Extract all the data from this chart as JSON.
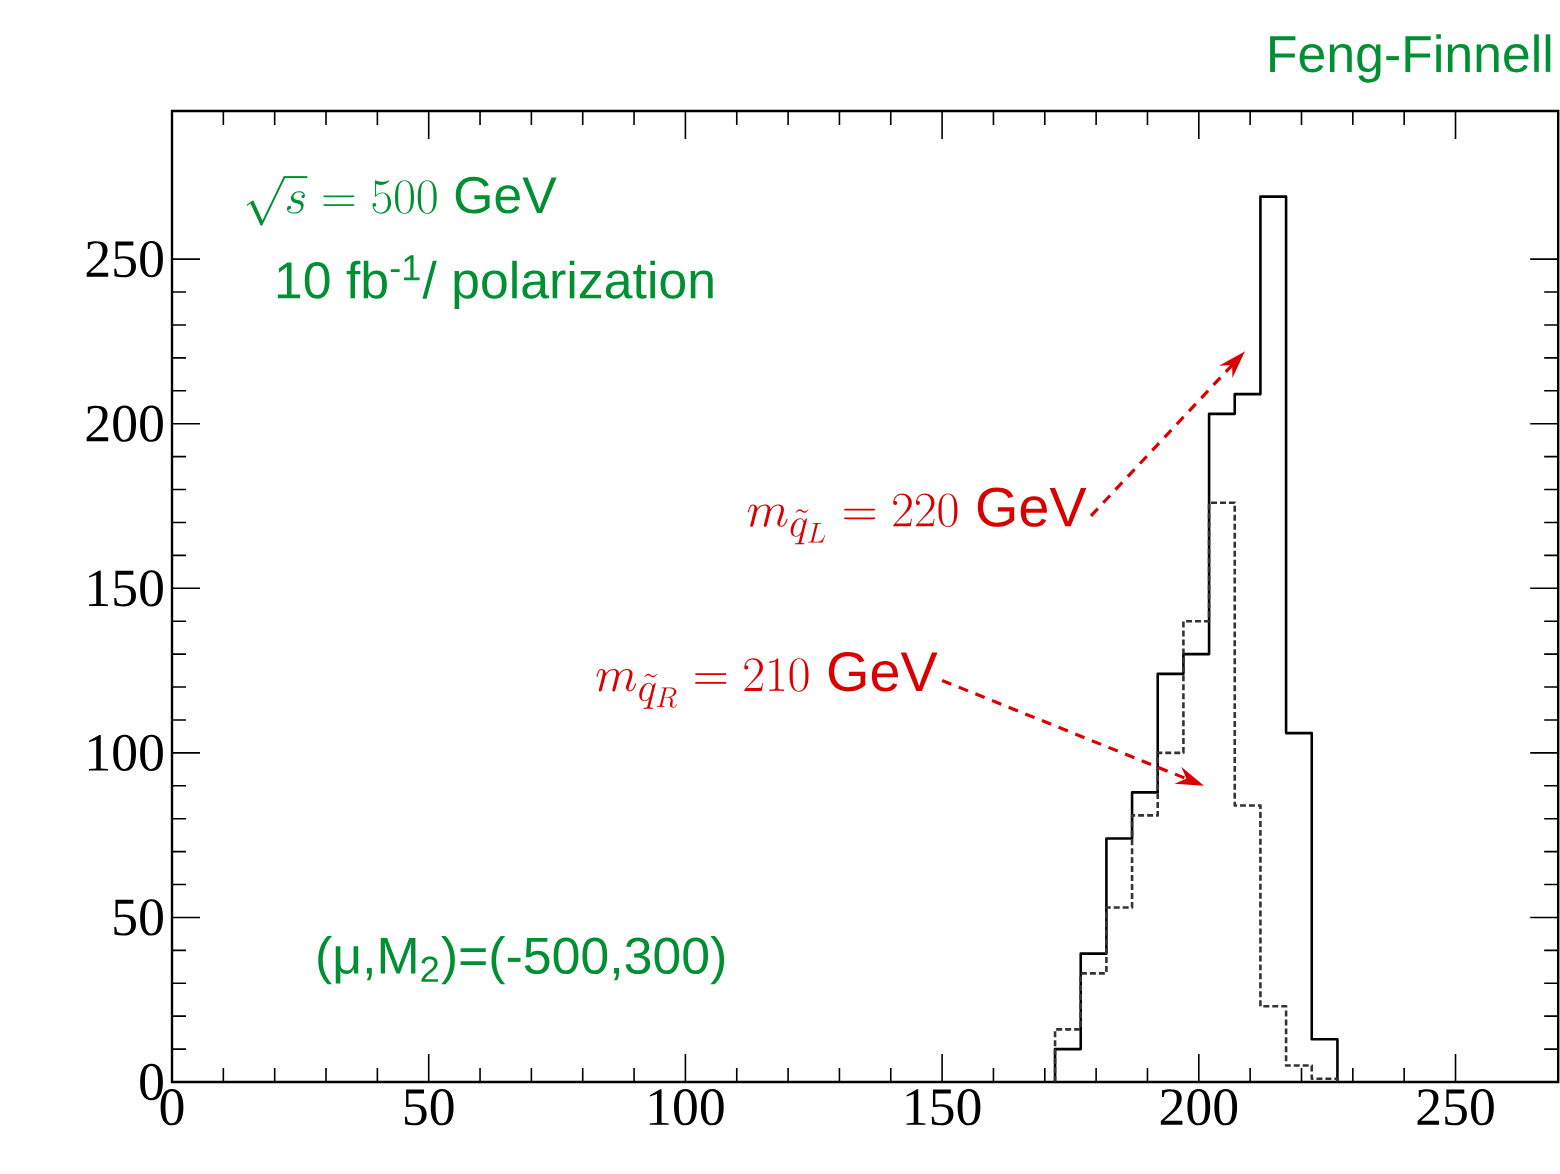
{
  "chart_data": {
    "type": "histogram",
    "bins": [
      172,
      177,
      182,
      187,
      192,
      197,
      202,
      207,
      212,
      217,
      222,
      227
    ],
    "series": [
      {
        "color": "#000000",
        "line_style": "solid",
        "values": [
          10,
          39,
          74,
          88,
          124,
          130,
          203,
          209,
          269,
          106,
          13
        ]
      },
      {
        "color": "#333333",
        "line_style": "dotted",
        "values": [
          16,
          33,
          53,
          81,
          100,
          140,
          176,
          84,
          23,
          5,
          1
        ]
      }
    ],
    "xlim": [
      0,
      270
    ],
    "ylim": [
      0,
      295
    ],
    "xticks": [
      0,
      50,
      100,
      150,
      200,
      250
    ],
    "yticks": [
      0,
      50,
      100,
      150,
      200,
      250
    ],
    "grid": false,
    "marker": "none",
    "annotations": [
      "Feng-Finnell",
      "\\sqrt{s} = 500\\ \\mathrm{GeV}",
      "10 fb$^{-1}$/ polarization",
      "m_{\\tilde{q}_L} = 220\\ \\mathrm{GeV}",
      "m_{\\tilde{q}_R} = 210\\ \\mathrm{GeV}",
      "(μ,M$_{2}$)=(-500,300)"
    ]
  }
}
